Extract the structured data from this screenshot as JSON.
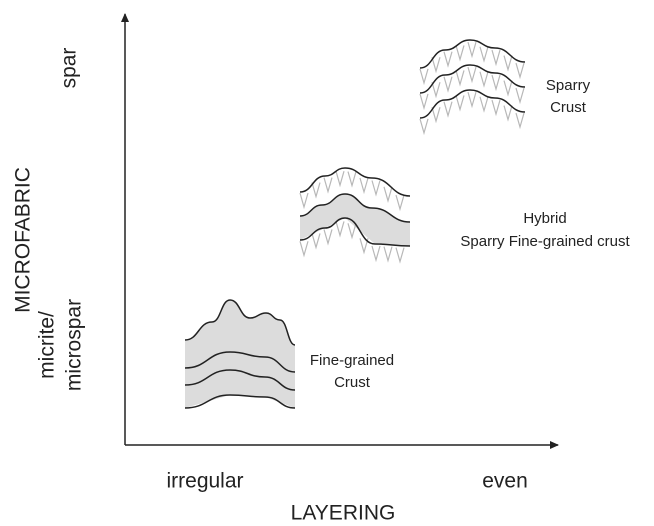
{
  "axes": {
    "x_label": "LAYERING",
    "y_label": "MICROFABRIC",
    "x_low": "irregular",
    "x_high": "even",
    "y_low": [
      "micrite/",
      "microspar"
    ],
    "y_high": "spar"
  },
  "nodes": [
    {
      "label": [
        "Sparry",
        "Crust"
      ]
    },
    {
      "label": [
        "Hybrid",
        "Sparry Fine-grained crust"
      ]
    },
    {
      "label": [
        "Fine-grained",
        "Crust"
      ]
    }
  ]
}
